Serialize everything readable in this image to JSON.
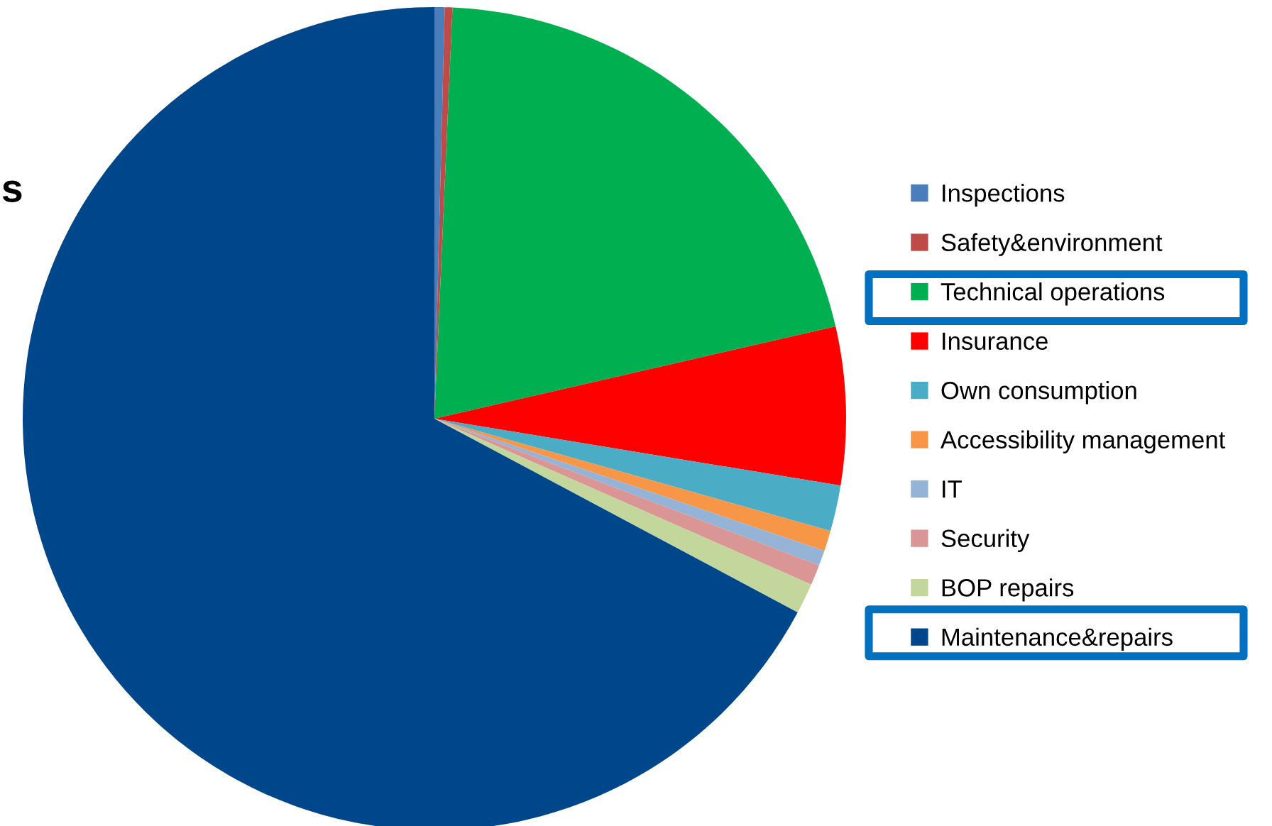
{
  "chart_data": {
    "type": "pie",
    "categories": [
      "Inspections",
      "Safety&environment",
      "Technical operations",
      "Insurance",
      "Own consumption",
      "Accessibility management",
      "IT",
      "Security",
      "BOP repairs",
      "Maintenance&repairs"
    ],
    "values": [
      0.4,
      0.3,
      20.7,
      6.2,
      1.8,
      0.8,
      0.6,
      0.8,
      1.2,
      67.2
    ],
    "colors": [
      "#4a7ebb",
      "#be4b48",
      "#00b050",
      "#ff0000",
      "#4bacc6",
      "#f79646",
      "#95b3d7",
      "#d99694",
      "#c3d69b",
      "#00468b"
    ],
    "legend": "right",
    "annotations": [
      "s"
    ]
  }
}
